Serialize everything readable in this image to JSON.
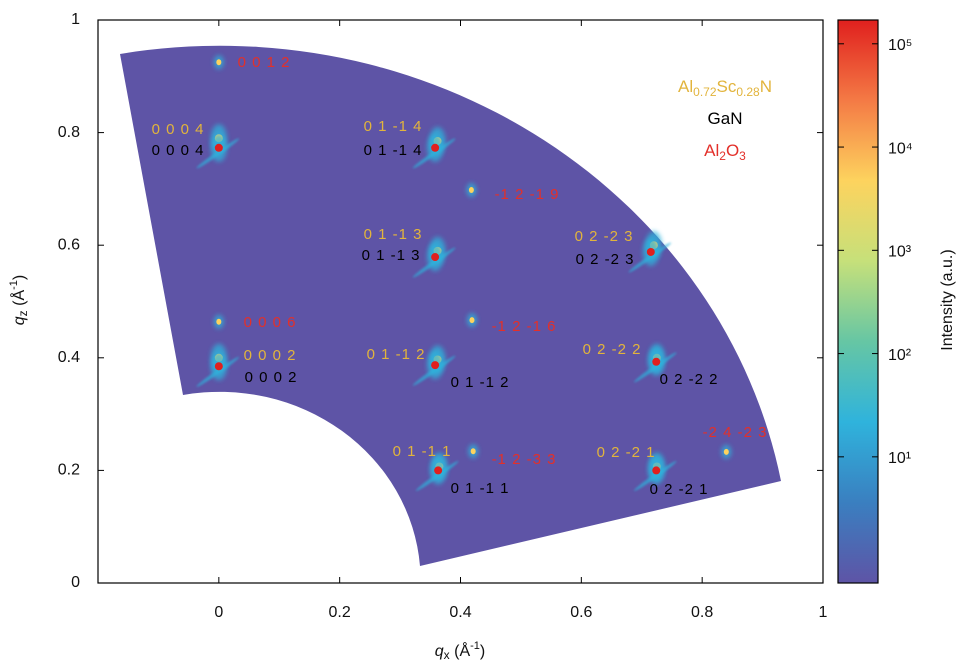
{
  "chart_data": {
    "type": "reciprocal-space-map",
    "xlabel": "qx (Å-1)",
    "ylabel": "qz (Å-1)",
    "colorbar_label": "Intensity (a.u.)",
    "xlim": [
      -0.2,
      1
    ],
    "ylim": [
      0,
      1
    ],
    "xticks": [
      0,
      0.2,
      0.4,
      0.6,
      0.8,
      1
    ],
    "yticks": [
      0,
      0.2,
      0.4,
      0.6,
      0.8,
      1
    ],
    "cscale": "log",
    "clim": [
      0.6,
      170000
    ],
    "cticks": [
      {
        "value": 10,
        "label": "10¹"
      },
      {
        "value": 100,
        "label": "10²"
      },
      {
        "value": 1000,
        "label": "10³"
      },
      {
        "value": 10000,
        "label": "10⁴"
      },
      {
        "value": 100000,
        "label": "10⁵"
      }
    ],
    "colormap": [
      "#5e54a6",
      "#3a7fc0",
      "#2fb3dc",
      "#66c6a4",
      "#c6e07a",
      "#fdd35e",
      "#f47a45",
      "#e0201e"
    ],
    "series": [
      {
        "name": "Al0.72Sc0.28N",
        "color": "#e2b43c",
        "labels": [
          "0 0 0 4",
          "0 1 -1 4",
          "0 1 -1 3",
          "0 2 -2 3",
          "0 0 0 2",
          "0 1 -1 2",
          "0 2 -2 2",
          "0 1 -1 1",
          "0 2 -2 1"
        ],
        "x": [
          0,
          0.362,
          0.362,
          0.72,
          0,
          0.362,
          0.725,
          0.365,
          0.725
        ],
        "y": [
          0.79,
          0.785,
          0.59,
          0.6,
          0.4,
          0.397,
          0.4,
          0.207,
          0.207
        ]
      },
      {
        "name": "GaN",
        "color": "#000000",
        "labels": [
          "0 0 0 4",
          "0 1 -1 4",
          "0 1 -1 3",
          "0 2 -2 3",
          "0 0 0 2",
          "0 1 -1 2",
          "0 2 -2 2",
          "0 1 -1 1",
          "0 2 -2 1"
        ],
        "x": [
          0,
          0.358,
          0.358,
          0.715,
          0,
          0.358,
          0.724,
          0.363,
          0.724
        ],
        "y": [
          0.773,
          0.773,
          0.579,
          0.588,
          0.385,
          0.387,
          0.393,
          0.2,
          0.2
        ]
      },
      {
        "name": "Al2O3",
        "color": "#e3302a",
        "labels": [
          "0 0 1 2",
          "-1 2 -1 9",
          "0 0 0 6",
          "-1 2 -1 6",
          "-1 2 -3 3",
          "-2 4 -2 3"
        ],
        "x": [
          0,
          0.418,
          0,
          0.419,
          0.421,
          0.84
        ],
        "y": [
          0.925,
          0.698,
          0.464,
          0.467,
          0.234,
          0.233
        ]
      }
    ]
  }
}
